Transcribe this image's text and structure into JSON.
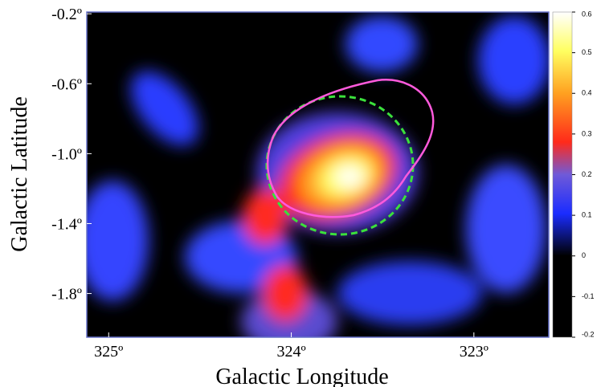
{
  "chart_data": {
    "type": "heatmap",
    "xlabel": "Galactic Longitude",
    "ylabel": "Galactic Latitude",
    "xlim": [
      325.12,
      322.59
    ],
    "ylim": [
      -2.05,
      -0.19
    ],
    "xticks": [
      {
        "value": 325,
        "label": "325º"
      },
      {
        "value": 324,
        "label": "324º"
      },
      {
        "value": 323,
        "label": "323º"
      }
    ],
    "yticks": [
      {
        "value": -0.2,
        "label": "-0.2º"
      },
      {
        "value": -0.6,
        "label": "-0.6º"
      },
      {
        "value": -1.0,
        "label": "-1.0º"
      },
      {
        "value": -1.4,
        "label": "-1.4º"
      },
      {
        "value": -1.8,
        "label": "-1.8º"
      }
    ],
    "colorbar": {
      "lim": [
        -0.2,
        0.6
      ],
      "ticks": [
        0.6,
        0.5,
        0.4,
        0.3,
        0.2,
        0.1,
        0,
        -0.1,
        -0.2
      ]
    }
  }
}
